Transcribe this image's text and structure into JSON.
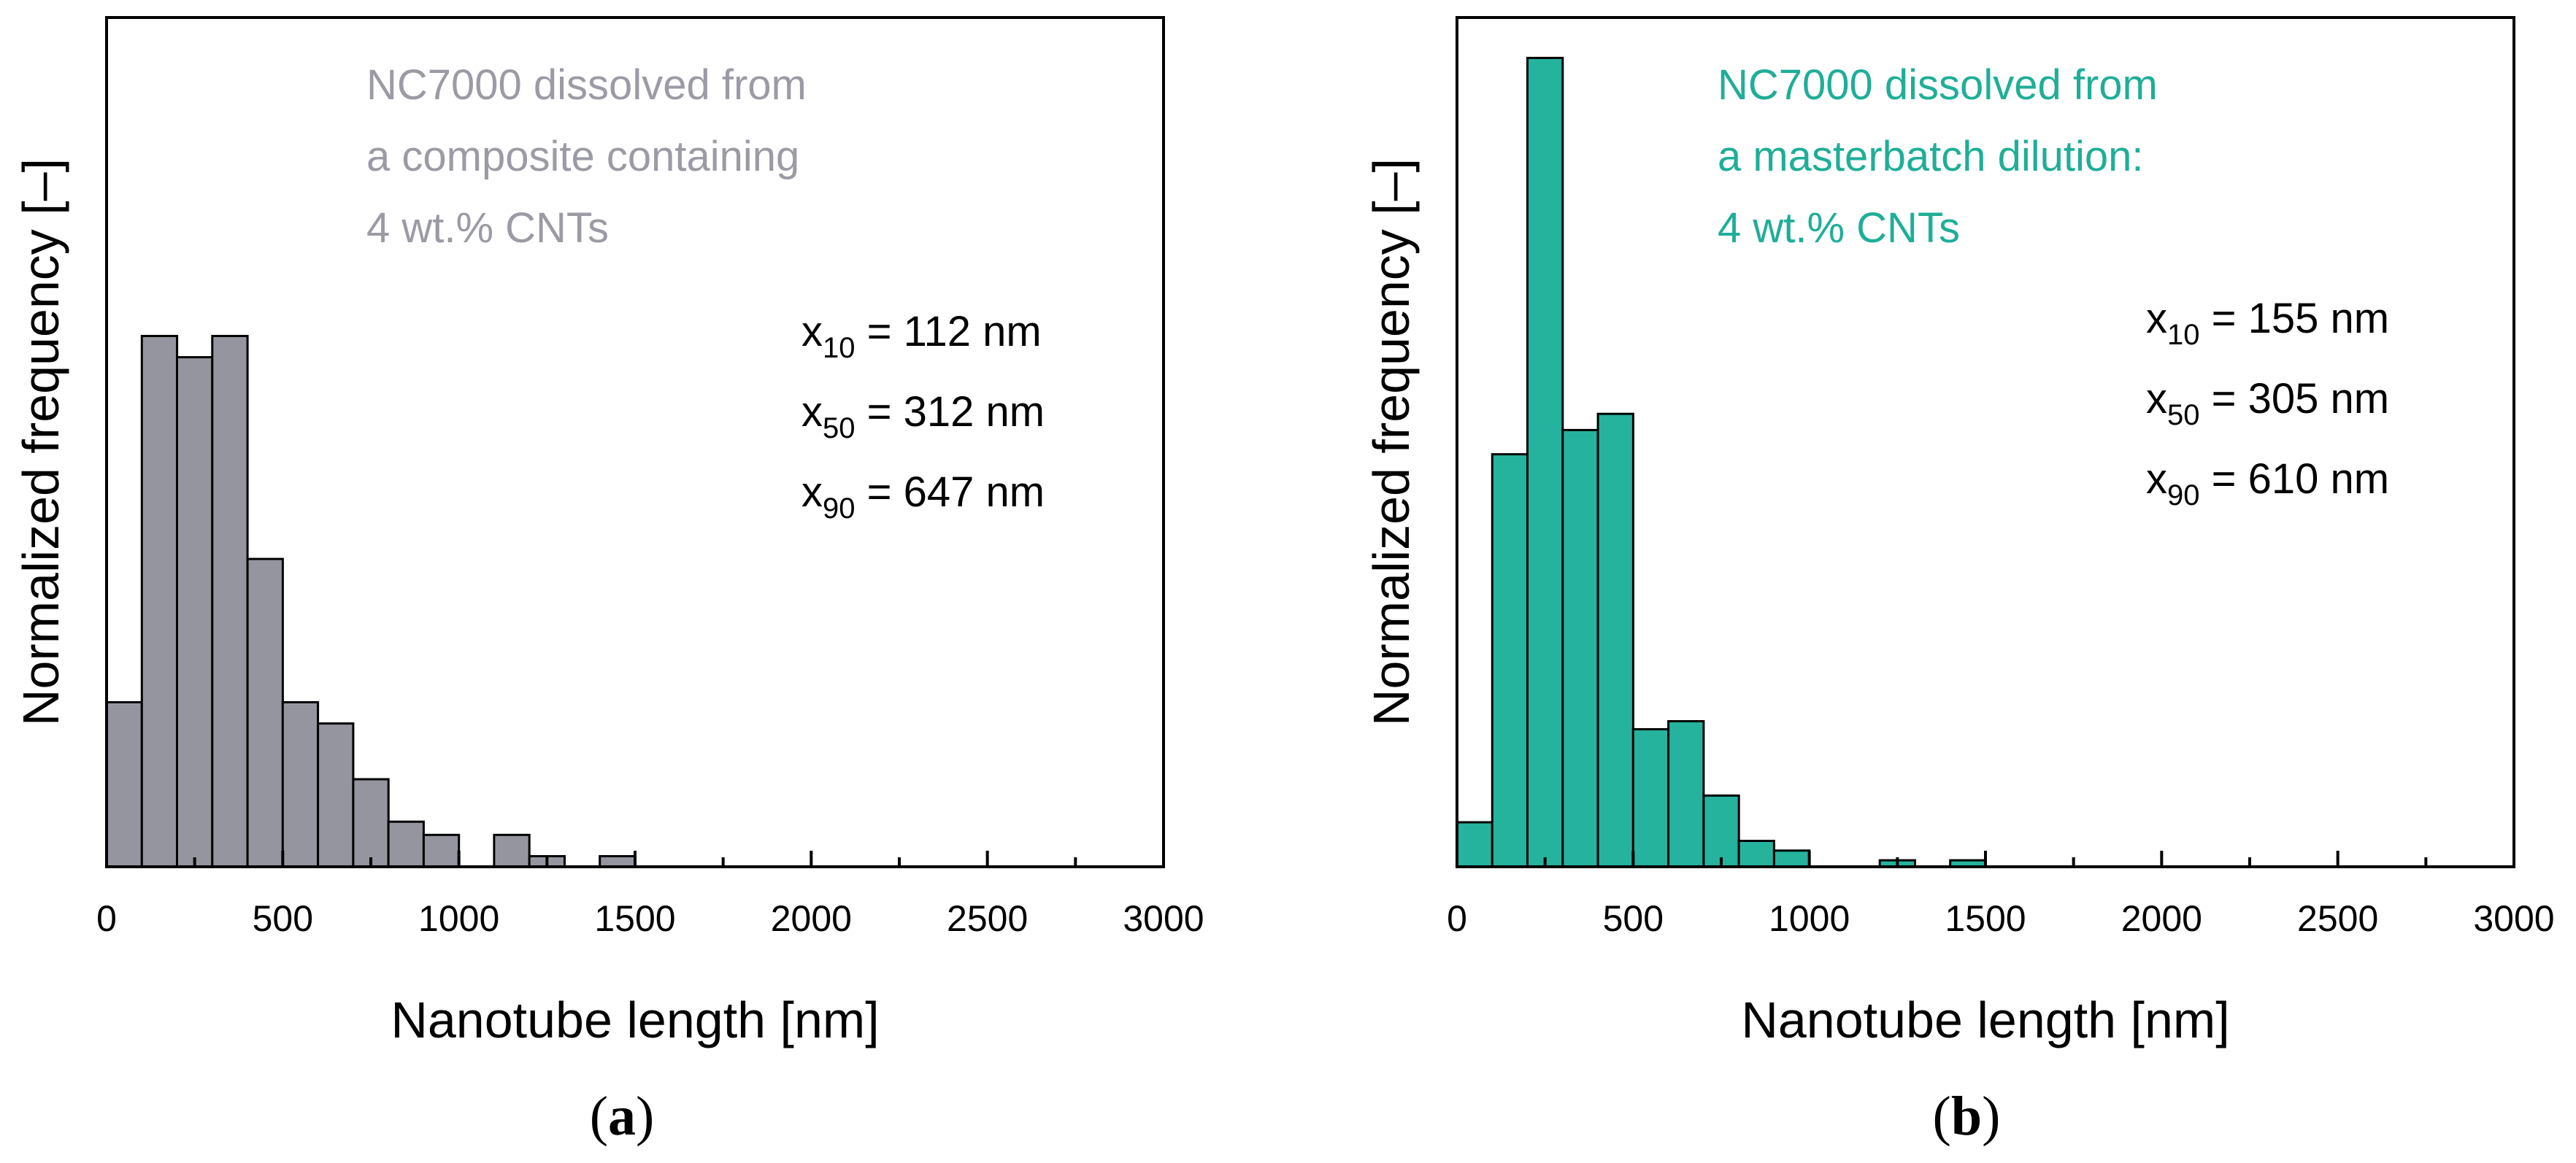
{
  "colors": {
    "panel_a": "#9595a0",
    "panel_b": "#25b39e",
    "annotation_a": "#9b9ba5",
    "annotation_b": "#1fae98"
  },
  "chart_data": [
    {
      "type": "bar",
      "panel_label": "a",
      "xlabel": "Nanotube length [nm]",
      "ylabel": "Normalized frequency [–]",
      "xlim": [
        0,
        3000
      ],
      "ylim": [
        0,
        1.6
      ],
      "xticks": [
        0,
        500,
        1000,
        1500,
        2000,
        2500,
        3000
      ],
      "bin_width": 100,
      "bin_starts": [
        0,
        100,
        200,
        300,
        400,
        500,
        600,
        700,
        800,
        900,
        1000,
        1100,
        1200,
        1300,
        1400
      ],
      "values": [
        0.31,
        1.0,
        0.96,
        1.0,
        0.58,
        0.31,
        0.27,
        0.165,
        0.085,
        0.06,
        0,
        0.06,
        0.02,
        0,
        0.02
      ],
      "annotation_lines": [
        "NC7000 dissolved from",
        "a composite containing",
        "4 wt.% CNTs"
      ],
      "stats": [
        {
          "sym": "x",
          "sub": "10",
          "text": " = 112 nm"
        },
        {
          "sym": "x",
          "sub": "50",
          "text": " = 312 nm"
        },
        {
          "sym": "x",
          "sub": "90",
          "text": " = 647 nm"
        }
      ]
    },
    {
      "type": "bar",
      "panel_label": "b",
      "xlabel": "Nanotube length [nm]",
      "ylabel": "Normalized frequency [–]",
      "xlim": [
        0,
        3000
      ],
      "ylim": [
        0,
        1.05
      ],
      "xticks": [
        0,
        500,
        1000,
        1500,
        2000,
        2500,
        3000
      ],
      "bin_width": 100,
      "bin_starts": [
        0,
        100,
        200,
        300,
        400,
        500,
        600,
        700,
        800,
        900,
        1000,
        1100,
        1200,
        1300,
        1400
      ],
      "values": [
        0.055,
        0.51,
        1.0,
        0.54,
        0.56,
        0.17,
        0.18,
        0.088,
        0.032,
        0.02,
        0,
        0,
        0.008,
        0,
        0.008
      ],
      "annotation_lines": [
        "NC7000 dissolved from",
        "a masterbatch dilution:",
        "4 wt.% CNTs"
      ],
      "stats": [
        {
          "sym": "x",
          "sub": "10",
          "text": " = 155 nm"
        },
        {
          "sym": "x",
          "sub": "50",
          "text": " = 305 nm"
        },
        {
          "sym": "x",
          "sub": "90",
          "text": " = 610 nm"
        }
      ]
    }
  ]
}
